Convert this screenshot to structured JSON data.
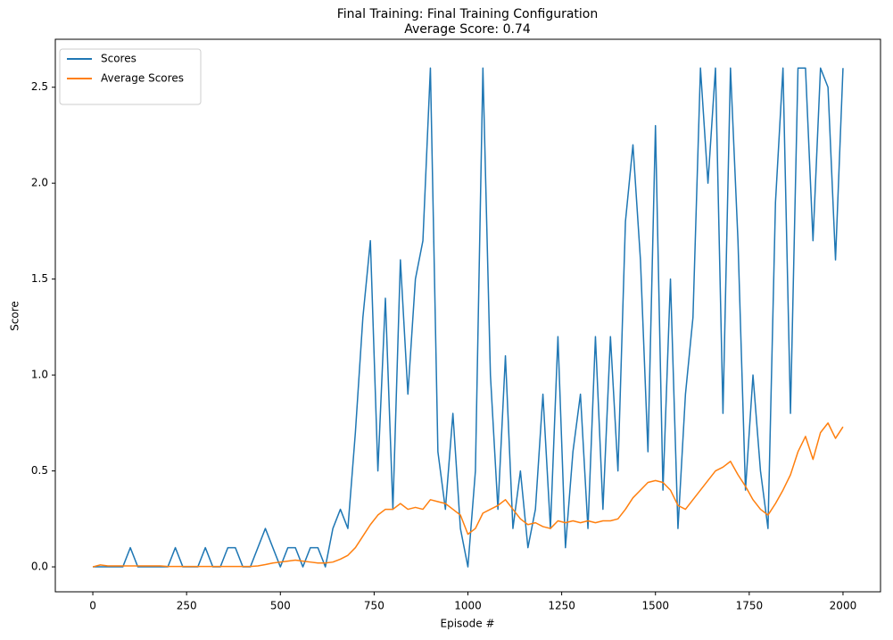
{
  "chart_data": {
    "type": "line",
    "title": "Final Training: Final Training Configuration",
    "subtitle": "Average Score: 0.74",
    "x_label": "Episode #",
    "y_label": "Score",
    "legend": "upper left",
    "grid": false,
    "xlim": [
      -100,
      2100
    ],
    "xticks": [
      0,
      250,
      500,
      750,
      1000,
      1250,
      1500,
      1750,
      2000
    ],
    "ylim": [
      -0.13,
      2.75
    ],
    "yticks": [
      {
        "value": 0,
        "label": "0.0"
      },
      {
        "value": 0.5,
        "label": "0.5"
      },
      {
        "value": 1,
        "label": "1.0"
      },
      {
        "value": 1.5,
        "label": "1.5"
      },
      {
        "value": 2,
        "label": "2.0"
      },
      {
        "value": 2.5,
        "label": "2.5"
      }
    ],
    "x": [
      0,
      20,
      40,
      60,
      80,
      100,
      120,
      140,
      160,
      180,
      200,
      220,
      240,
      260,
      280,
      300,
      320,
      340,
      360,
      380,
      400,
      420,
      440,
      460,
      480,
      500,
      520,
      540,
      560,
      580,
      600,
      620,
      640,
      660,
      680,
      700,
      720,
      740,
      760,
      780,
      800,
      820,
      840,
      860,
      880,
      900,
      920,
      940,
      960,
      980,
      1000,
      1020,
      1040,
      1060,
      1080,
      1100,
      1120,
      1140,
      1160,
      1180,
      1200,
      1220,
      1240,
      1260,
      1280,
      1300,
      1320,
      1340,
      1360,
      1380,
      1400,
      1420,
      1440,
      1460,
      1480,
      1500,
      1520,
      1540,
      1560,
      1580,
      1600,
      1620,
      1640,
      1660,
      1680,
      1700,
      1720,
      1740,
      1760,
      1780,
      1800,
      1820,
      1840,
      1860,
      1880,
      1900,
      1920,
      1940,
      1960,
      1980,
      2000
    ],
    "series": [
      {
        "name": "Scores",
        "color": "#1f77b4",
        "values": [
          0,
          0,
          0,
          0,
          0,
          0.1,
          0,
          0,
          0,
          0,
          0,
          0.1,
          0,
          0,
          0,
          0.1,
          0,
          0,
          0.1,
          0.1,
          0,
          0,
          0.1,
          0.2,
          0.1,
          0,
          0.1,
          0.1,
          0,
          0.1,
          0.1,
          0,
          0.2,
          0.3,
          0.2,
          0.7,
          1.3,
          1.7,
          0.5,
          1.4,
          0.3,
          1.6,
          0.9,
          1.5,
          1.7,
          2.6,
          0.6,
          0.3,
          0.8,
          0.2,
          0,
          0.5,
          2.6,
          1.0,
          0.3,
          1.1,
          0.2,
          0.5,
          0.1,
          0.3,
          0.9,
          0.2,
          1.2,
          0.1,
          0.6,
          0.9,
          0.2,
          1.2,
          0.3,
          1.2,
          0.5,
          1.8,
          2.2,
          1.6,
          0.6,
          2.3,
          0.4,
          1.5,
          0.2,
          0.9,
          1.3,
          2.6,
          2.0,
          2.6,
          0.8,
          2.6,
          1.7,
          0.4,
          1.0,
          0.5,
          0.2,
          1.9,
          2.6,
          0.8,
          2.6,
          2.6,
          1.7,
          2.6,
          2.5,
          1.6,
          2.6
        ]
      },
      {
        "name": "Average Scores",
        "color": "#ff7f0e",
        "values": [
          0,
          0.01,
          0.005,
          0.005,
          0.005,
          0.005,
          0.005,
          0.005,
          0.005,
          0.005,
          0.002,
          0.002,
          0.002,
          0.002,
          0.002,
          0.002,
          0.002,
          0.002,
          0.002,
          0.002,
          0.002,
          0.002,
          0.005,
          0.012,
          0.02,
          0.025,
          0.03,
          0.035,
          0.03,
          0.025,
          0.02,
          0.02,
          0.025,
          0.04,
          0.06,
          0.1,
          0.16,
          0.22,
          0.27,
          0.3,
          0.3,
          0.33,
          0.3,
          0.31,
          0.3,
          0.35,
          0.34,
          0.33,
          0.3,
          0.27,
          0.17,
          0.2,
          0.28,
          0.3,
          0.32,
          0.35,
          0.3,
          0.25,
          0.22,
          0.23,
          0.21,
          0.2,
          0.24,
          0.23,
          0.24,
          0.23,
          0.24,
          0.23,
          0.24,
          0.24,
          0.25,
          0.3,
          0.36,
          0.4,
          0.44,
          0.45,
          0.44,
          0.4,
          0.32,
          0.3,
          0.35,
          0.4,
          0.45,
          0.5,
          0.52,
          0.55,
          0.48,
          0.42,
          0.35,
          0.3,
          0.27,
          0.33,
          0.4,
          0.48,
          0.6,
          0.68,
          0.56,
          0.7,
          0.75,
          0.67,
          0.73
        ]
      }
    ]
  }
}
